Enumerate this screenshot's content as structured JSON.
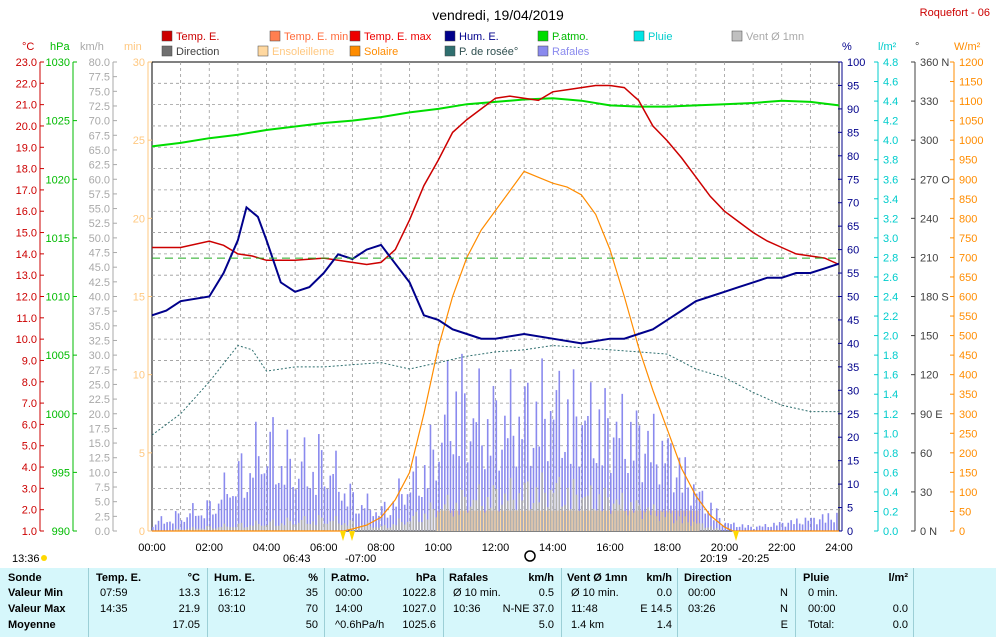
{
  "header": {
    "title": "vendredi, 19/04/2019",
    "station": "Roquefort - 06"
  },
  "axis_units": {
    "temp": "°C",
    "press": "hPa",
    "speed": "km/h",
    "minutes": "min",
    "percent": "%",
    "rain": "l/m²",
    "degrees": "°",
    "solar": "W/m²"
  },
  "legend": [
    {
      "label": "Temp. E.",
      "color": "#cc0000",
      "text_color": "#cc0000"
    },
    {
      "label": "Temp. E. min",
      "color": "#ff7f50",
      "text_color": "#ff6a3a"
    },
    {
      "label": "Temp. E. max",
      "color": "#ee0000",
      "text_color": "#ee0000"
    },
    {
      "label": "Hum. E.",
      "color": "#00008b",
      "text_color": "#00008b"
    },
    {
      "label": "P.atmo.",
      "color": "#00dd00",
      "text_color": "#00bb00"
    },
    {
      "label": "Pluie",
      "color": "#00e5e5",
      "text_color": "#00cccc"
    },
    {
      "label": "Vent Ø 1mn",
      "color": "#c0c0c0",
      "text_color": "#a9a9a9"
    },
    {
      "label": "Direction",
      "color": "#707070",
      "text_color": "#404040"
    },
    {
      "label": "Ensoleilleme",
      "color": "#ffd8a0",
      "text_color": "#ffc880"
    },
    {
      "label": "Solaire",
      "color": "#ff8c00",
      "text_color": "#ff8c00"
    },
    {
      "label": "P. de rosée°",
      "color": "#2f6f6f",
      "text_color": "#2f4f4f"
    },
    {
      "label": "Rafales",
      "color": "#8a8aee",
      "text_color": "#8a8aee"
    }
  ],
  "axes": {
    "temp_ticks": [
      "1.0",
      "2.0",
      "3.0",
      "4.0",
      "5.0",
      "6.0",
      "7.0",
      "8.0",
      "9.0",
      "10.0",
      "11.0",
      "12.0",
      "13.0",
      "14.0",
      "15.0",
      "16.0",
      "17.0",
      "18.0",
      "19.0",
      "20.0",
      "21.0",
      "22.0",
      "23.0"
    ],
    "press_ticks": [
      "990",
      "995",
      "1000",
      "1005",
      "1010",
      "1015",
      "1020",
      "1025",
      "1030"
    ],
    "speed_ticks": [
      "0.0",
      "2.5",
      "5.0",
      "7.5",
      "10.0",
      "12.5",
      "15.0",
      "17.5",
      "20.0",
      "22.5",
      "25.0",
      "27.5",
      "30.0",
      "32.5",
      "35.0",
      "37.5",
      "40.0",
      "42.5",
      "45.0",
      "47.5",
      "50.0",
      "52.5",
      "55.0",
      "57.5",
      "60.0",
      "62.5",
      "65.0",
      "67.5",
      "70.0",
      "72.5",
      "75.0",
      "77.5",
      "80.0"
    ],
    "minutes_ticks": [
      "0",
      "5",
      "10",
      "15",
      "20",
      "25",
      "30"
    ],
    "percent_ticks": [
      "0",
      "5",
      "10",
      "15",
      "20",
      "25",
      "30",
      "35",
      "40",
      "45",
      "50",
      "55",
      "60",
      "65",
      "70",
      "75",
      "80",
      "85",
      "90",
      "95",
      "100"
    ],
    "rain_ticks": [
      "0.0",
      "0.2",
      "0.4",
      "0.6",
      "0.8",
      "1.0",
      "1.2",
      "1.4",
      "1.6",
      "1.8",
      "2.0",
      "2.2",
      "2.4",
      "2.6",
      "2.8",
      "3.0",
      "3.2",
      "3.4",
      "3.6",
      "3.8",
      "4.0",
      "4.2",
      "4.4",
      "4.6",
      "4.8"
    ],
    "dir_ticks": [
      "0 N",
      "30",
      "60",
      "90 E",
      "120",
      "150",
      "180 S",
      "210",
      "240",
      "270 O",
      "300",
      "330",
      "360 N"
    ],
    "solar_ticks": [
      "0",
      "50",
      "100",
      "150",
      "200",
      "250",
      "300",
      "350",
      "400",
      "450",
      "500",
      "550",
      "600",
      "650",
      "700",
      "750",
      "800",
      "850",
      "900",
      "950",
      "1000",
      "1050",
      "1100",
      "1150",
      "1200"
    ],
    "time_ticks": [
      "00:00",
      "02:00",
      "04:00",
      "06:00",
      "08:00",
      "10:00",
      "12:00",
      "14:00",
      "16:00",
      "18:00",
      "20:00",
      "22:00",
      "24:00"
    ]
  },
  "markers": {
    "left_time": "13:36",
    "sunrise": "06:43",
    "sunrise_span": "07:00",
    "sunset": "20:19",
    "sunset_span": "20:25"
  },
  "chart_data": {
    "type": "line",
    "x_unit": "hours",
    "xlim": [
      0,
      24
    ],
    "series": [
      {
        "name": "Temp. E.",
        "unit": "°C",
        "ylim": [
          1,
          23
        ],
        "x": [
          0,
          1,
          2,
          2.5,
          3,
          3.5,
          4,
          5,
          6,
          7,
          7.5,
          8,
          8.5,
          9,
          9.5,
          10,
          10.5,
          11,
          11.5,
          12,
          12.5,
          13,
          13.5,
          14,
          14.5,
          15,
          15.5,
          16,
          16.5,
          17,
          17.5,
          18,
          18.5,
          19,
          19.5,
          20,
          20.5,
          21,
          21.5,
          22,
          22.5,
          23,
          23.5,
          24
        ],
        "y": [
          14.3,
          14.3,
          14.6,
          14.4,
          14.0,
          13.9,
          13.7,
          13.7,
          13.8,
          13.6,
          13.5,
          13.6,
          14.2,
          15.6,
          17.2,
          18.4,
          19.7,
          20.3,
          20.8,
          21.3,
          21.4,
          21.3,
          21.2,
          21.6,
          21.7,
          21.8,
          21.9,
          21.9,
          21.8,
          21.2,
          20.0,
          19.3,
          18.5,
          17.6,
          16.7,
          16.0,
          15.5,
          15.0,
          14.6,
          14.3,
          14.0,
          13.9,
          13.8,
          13.5
        ]
      },
      {
        "name": "Hum. E.",
        "unit": "%",
        "ylim": [
          0,
          100
        ],
        "x": [
          0,
          0.5,
          1,
          2,
          2.5,
          3,
          3.3,
          3.7,
          4,
          4.5,
          5,
          5.5,
          6,
          6.5,
          7,
          7.5,
          8,
          8.5,
          9,
          9.5,
          10,
          10.5,
          11,
          11.5,
          12,
          13,
          14,
          15,
          16,
          16.5,
          17,
          17.5,
          18,
          18.5,
          19,
          19.5,
          20,
          20.5,
          21,
          21.5,
          22,
          22.5,
          23,
          23.5,
          24
        ],
        "y": [
          46,
          47,
          49,
          50,
          55,
          62,
          69,
          67,
          62,
          53,
          51,
          52,
          55,
          59,
          58,
          60,
          61,
          57,
          53,
          46,
          45,
          43,
          42,
          41,
          41,
          42,
          41,
          40,
          41,
          41,
          42,
          43,
          45,
          47,
          49,
          50,
          51,
          52,
          53,
          54,
          54,
          55,
          55,
          56,
          57
        ]
      },
      {
        "name": "P.atmo.",
        "unit": "hPa",
        "ylim": [
          990,
          1030
        ],
        "x": [
          0,
          1,
          2,
          3,
          4,
          5,
          6,
          7,
          8,
          9,
          10,
          11,
          12,
          13,
          14,
          15,
          16,
          17,
          18,
          19,
          20,
          21,
          22,
          23,
          24
        ],
        "y": [
          1022.8,
          1023.1,
          1023.5,
          1023.8,
          1024.2,
          1024.5,
          1024.8,
          1025.0,
          1025.3,
          1025.7,
          1026.0,
          1026.4,
          1026.6,
          1026.8,
          1026.9,
          1026.7,
          1026.3,
          1026.2,
          1026.2,
          1026.3,
          1026.4,
          1026.5,
          1026.7,
          1026.6,
          1026.3
        ]
      },
      {
        "name": "P. de rosée°",
        "unit": "°C",
        "ylim": [
          1,
          23
        ],
        "x": [
          0,
          1,
          2,
          3,
          3.5,
          4,
          5,
          6,
          7,
          8,
          9,
          10,
          11,
          12,
          13,
          14,
          15,
          16,
          17,
          18,
          19,
          20,
          21,
          22,
          23,
          24
        ],
        "y": [
          5.5,
          6.5,
          8.0,
          9.7,
          9.5,
          8.5,
          8.7,
          8.7,
          8.8,
          8.9,
          8.6,
          8.9,
          9.2,
          9.4,
          9.5,
          9.7,
          9.6,
          9.5,
          9.4,
          9.3,
          8.6,
          8.2,
          7.5,
          6.9,
          6.6,
          6.6
        ]
      },
      {
        "name": "Solaire",
        "unit": "W/m²",
        "ylim": [
          0,
          1200
        ],
        "x": [
          0,
          6.7,
          7,
          7.5,
          8,
          8.5,
          9,
          9.5,
          10,
          10.5,
          11,
          11.5,
          12,
          12.5,
          13,
          13.5,
          14,
          14.5,
          15,
          15.5,
          16,
          16.5,
          17,
          17.5,
          18,
          18.5,
          19,
          19.5,
          20,
          20.3,
          24
        ],
        "y": [
          0,
          0,
          5,
          15,
          35,
          80,
          150,
          300,
          470,
          600,
          700,
          770,
          820,
          870,
          920,
          905,
          890,
          880,
          860,
          810,
          720,
          600,
          470,
          360,
          260,
          160,
          90,
          40,
          10,
          0,
          0
        ]
      },
      {
        "name": "Rafales",
        "unit": "km/h",
        "ylim": [
          0,
          80
        ],
        "x": [
          0,
          1,
          2,
          3,
          3.5,
          4,
          5,
          6,
          7,
          8,
          9,
          10,
          10.5,
          11,
          12,
          13,
          14,
          15,
          16,
          17,
          18,
          19,
          20,
          21,
          22,
          23,
          24
        ],
        "y": [
          2,
          4,
          6,
          14,
          18,
          22,
          16,
          18,
          8,
          5,
          12,
          22,
          37,
          30,
          28,
          30,
          32,
          29,
          27,
          24,
          20,
          10,
          2,
          1,
          2,
          3,
          4
        ]
      },
      {
        "name": "Vent Ø 1mn",
        "unit": "km/h",
        "ylim": [
          0,
          80
        ],
        "x": [
          0,
          2,
          4,
          6,
          8,
          9,
          10,
          11,
          12,
          13,
          14,
          15,
          16,
          17,
          18,
          19,
          20,
          24
        ],
        "y": [
          0,
          1,
          2,
          3,
          1,
          3,
          6,
          8,
          9,
          10,
          11,
          9,
          8,
          6,
          4,
          2,
          0,
          0
        ]
      }
    ],
    "sunshine_minutes": {
      "x_start": 9.9,
      "x_end": 19.1,
      "value": 1.3
    },
    "threshold_line_temp": 13.8
  },
  "stats": {
    "headers": {
      "sonde": "Sonde",
      "temp": "Temp. E.",
      "temp_u": "°C",
      "hum": "Hum. E.",
      "hum_u": "%",
      "press": "P.atmo.",
      "press_u": "hPa",
      "gust": "Rafales",
      "gust_u": "km/h",
      "wind": "Vent Ø 1mn",
      "wind_u": "km/h",
      "dir": "Direction",
      "rain": "Pluie",
      "rain_u": "l/m²"
    },
    "rows": [
      {
        "label": "Valeur Min",
        "temp_t": "07:59",
        "temp_v": "13.3",
        "hum_t": "16:12",
        "hum_v": "35",
        "press_t": "00:00",
        "press_v": "1022.8",
        "gust_t": "Ø 10 min.",
        "gust_v": "0.5",
        "wind_t": "Ø 10 min.",
        "wind_v": "0.0",
        "dir_t": "00:00",
        "dir_v": "N",
        "rain_t": "0 min.",
        "rain_v": ""
      },
      {
        "label": "Valeur Max",
        "temp_t": "14:35",
        "temp_v": "21.9",
        "hum_t": "03:10",
        "hum_v": "70",
        "press_t": "14:00",
        "press_v": "1027.0",
        "gust_t": "10:36",
        "gust_v": "N-NE 37.0",
        "wind_t": "11:48",
        "wind_v": "E 14.5",
        "dir_t": "03:26",
        "dir_v": "N",
        "rain_t": "00:00",
        "rain_v": "0.0"
      },
      {
        "label": "Moyenne",
        "temp_t": "",
        "temp_v": "17.05",
        "hum_t": "",
        "hum_v": "50",
        "press_t": "^0.6hPa/h",
        "press_v": "1025.6",
        "gust_t": "",
        "gust_v": "5.0",
        "wind_t": "1.4 km",
        "wind_v": "1.4",
        "dir_t": "",
        "dir_v": "E",
        "rain_t": "Total:",
        "rain_v": "0.0"
      }
    ]
  }
}
